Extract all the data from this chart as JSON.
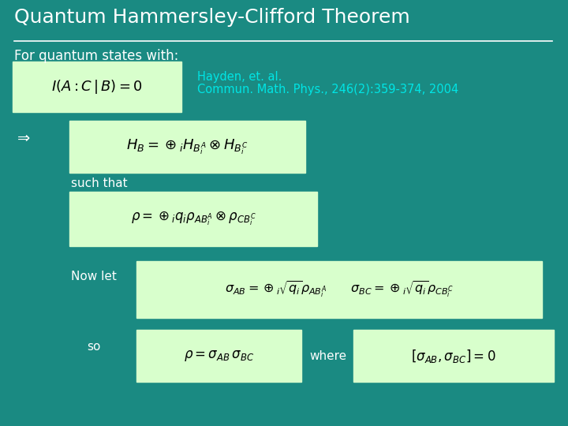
{
  "title": "Quantum Hammersley-Clifford Theorem",
  "bg_color": "#1a8a82",
  "title_color": "#ffffff",
  "title_fontsize": 18,
  "line_color": "#ffffff",
  "subtitle": "For quantum states with:",
  "subtitle_color": "#ffffff",
  "subtitle_fontsize": 12,
  "citation_line1": "Hayden, et. al.",
  "citation_line2": "Commun. Math. Phys., 246(2):359-374, 2004",
  "citation_color": "#00e5e5",
  "citation_fontsize": 10.5,
  "box_bg": "#d8ffcc",
  "label_color": "#ffffff",
  "label_fontsize": 11,
  "arrow_color": "#ffffff",
  "eq1": "$I(A:C\\,|\\,B)=0$",
  "eq2": "$H_B = \\oplus_i H_{B_i^A} \\otimes H_{B_i^C}$",
  "such_that": "such that",
  "eq3": "$\\rho = \\oplus_i q_i \\rho_{AB_i^A} \\otimes \\rho_{CB_i^C}$",
  "now_let": "Now let",
  "eq4": "$\\sigma_{AB} = \\oplus_i \\sqrt{q_i} \\rho_{AB_i^A} \\quad\\quad \\sigma_{BC} =\\oplus_i \\sqrt{q_i} \\rho_{CB_i^C}$",
  "so_label": "so",
  "eq5": "$\\rho = \\sigma_{AB}\\, \\sigma_{BC}$",
  "where_label": "where",
  "eq6": "$[\\sigma_{AB},\\sigma_{BC}] = 0$"
}
